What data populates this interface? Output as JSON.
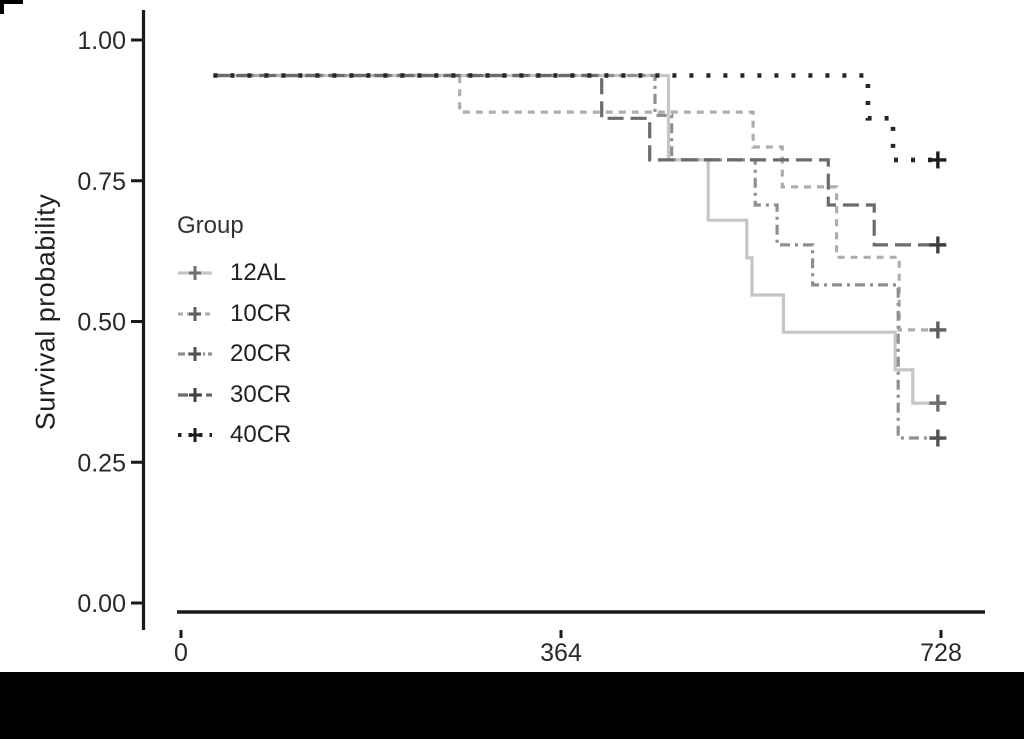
{
  "chart_data": {
    "type": "line",
    "subtype": "kaplan-meier-step-survival",
    "title": "",
    "xlabel": "",
    "ylabel": "Survival probability",
    "xlim": [
      0,
      728
    ],
    "ylim": [
      0.0,
      1.0
    ],
    "grid": false,
    "legend_title": "Group",
    "legend_position": "inside-left-middle",
    "x_ticks": [
      {
        "value": 0,
        "label": "0"
      },
      {
        "value": 364,
        "label": "364"
      },
      {
        "value": 728,
        "label": "728"
      }
    ],
    "y_ticks": [
      {
        "value": 1.0,
        "label": "1.00"
      },
      {
        "value": 0.75,
        "label": "0.75"
      },
      {
        "value": 0.5,
        "label": "0.50"
      },
      {
        "value": 0.25,
        "label": "0.25"
      },
      {
        "value": 0.0,
        "label": "0.00"
      }
    ],
    "series": [
      {
        "name": "12AL",
        "color": "#c6c6c6",
        "censor_color": "#6f6f6f",
        "linetype": "solid",
        "dash": "",
        "key_dash": "",
        "points": [
          [
            31,
            0.937
          ],
          [
            467,
            0.937
          ],
          [
            467,
            0.787
          ],
          [
            505,
            0.787
          ],
          [
            505,
            0.68
          ],
          [
            542,
            0.68
          ],
          [
            542,
            0.613
          ],
          [
            547,
            0.613
          ],
          [
            547,
            0.547
          ],
          [
            577,
            0.547
          ],
          [
            577,
            0.481
          ],
          [
            684,
            0.481
          ],
          [
            684,
            0.414
          ],
          [
            701,
            0.414
          ],
          [
            701,
            0.355
          ],
          [
            732,
            0.355
          ]
        ],
        "censor": {
          "t": 725,
          "s": 0.355
        }
      },
      {
        "name": "10CR",
        "color": "#aeaeae",
        "censor_color": "#5f5f5f",
        "linetype": "dashed",
        "dash": "7 6",
        "key_dash": "5 4",
        "points": [
          [
            31,
            0.937
          ],
          [
            267,
            0.937
          ],
          [
            267,
            0.872
          ],
          [
            548,
            0.872
          ],
          [
            548,
            0.81
          ],
          [
            576,
            0.81
          ],
          [
            576,
            0.739
          ],
          [
            628,
            0.739
          ],
          [
            628,
            0.614
          ],
          [
            688,
            0.614
          ],
          [
            688,
            0.485
          ],
          [
            732,
            0.485
          ]
        ],
        "censor": {
          "t": 725,
          "s": 0.485
        }
      },
      {
        "name": "20CR",
        "color": "#8f8f8f",
        "censor_color": "#525252",
        "linetype": "twodash",
        "dash": "10 5 3 5",
        "key_dash": "7 3 2 3",
        "points": [
          [
            31,
            0.937
          ],
          [
            454,
            0.937
          ],
          [
            454,
            0.866
          ],
          [
            470,
            0.866
          ],
          [
            470,
            0.787
          ],
          [
            550,
            0.787
          ],
          [
            550,
            0.707
          ],
          [
            571,
            0.707
          ],
          [
            571,
            0.636
          ],
          [
            605,
            0.636
          ],
          [
            605,
            0.565
          ],
          [
            687,
            0.565
          ],
          [
            687,
            0.293
          ],
          [
            732,
            0.293
          ]
        ],
        "censor": {
          "t": 725,
          "s": 0.293
        }
      },
      {
        "name": "30CR",
        "color": "#6b6b6b",
        "censor_color": "#3f3f3f",
        "linetype": "longdash",
        "dash": "16 7",
        "key_dash": "10 4",
        "points": [
          [
            31,
            0.937
          ],
          [
            403,
            0.937
          ],
          [
            403,
            0.861
          ],
          [
            449,
            0.861
          ],
          [
            449,
            0.787
          ],
          [
            620,
            0.787
          ],
          [
            620,
            0.707
          ],
          [
            664,
            0.707
          ],
          [
            664,
            0.636
          ],
          [
            732,
            0.636
          ]
        ],
        "censor": {
          "t": 725,
          "s": 0.636
        }
      },
      {
        "name": "40CR",
        "color": "#262626",
        "censor_color": "#1c1c1c",
        "linetype": "dotted",
        "dash": "4 13",
        "key_dash": "3.5 7",
        "stroke_width": 4.6,
        "points": [
          [
            31,
            0.937
          ],
          [
            658,
            0.937
          ],
          [
            658,
            0.861
          ],
          [
            682,
            0.861
          ],
          [
            682,
            0.787
          ],
          [
            732,
            0.787
          ]
        ],
        "censor": {
          "t": 725,
          "s": 0.787
        }
      }
    ]
  }
}
